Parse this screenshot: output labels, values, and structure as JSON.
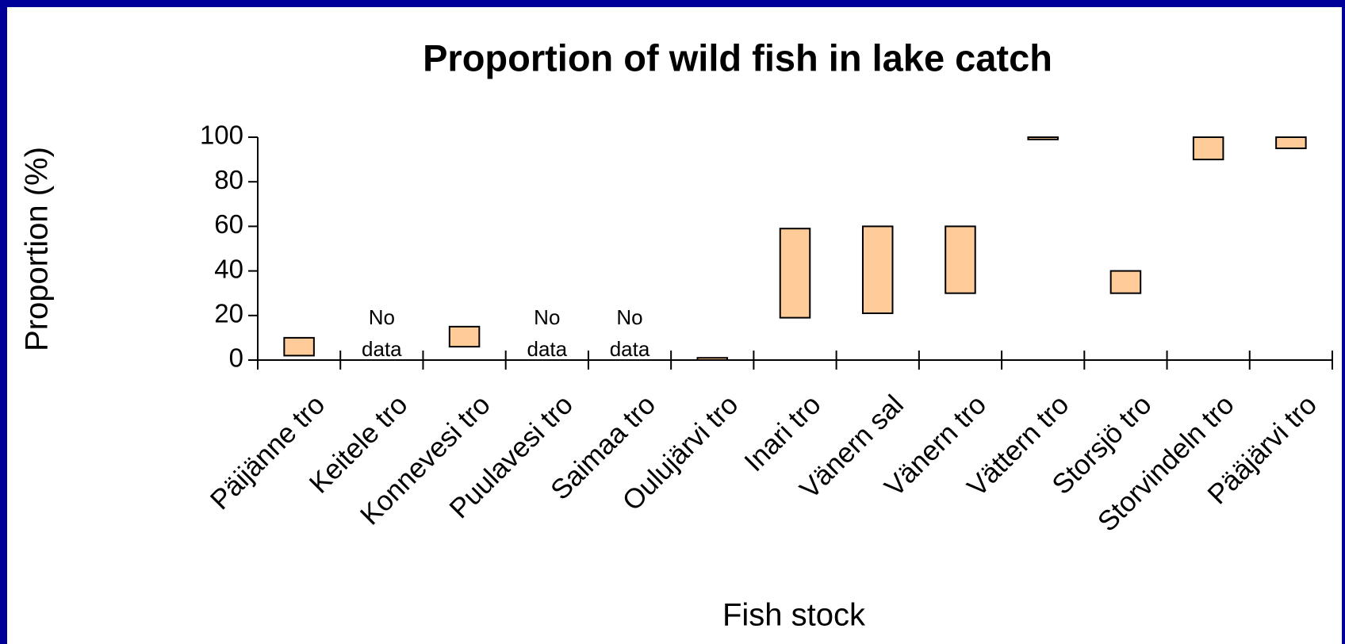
{
  "chart_data": {
    "type": "floating_bar",
    "title": "Proportion of wild fish in lake catch",
    "xlabel": "Fish stock",
    "ylabel": "Proportion (%)",
    "categories": [
      "Päijänne tro",
      "Keitele tro",
      "Konnevesi tro",
      "Puulavesi tro",
      "Saimaa tro",
      "Oulujärvi tro",
      "Inari tro",
      "Vänern sal",
      "Vänern tro",
      "Vättern tro",
      "Storsjö tro",
      "Storvindeln tro",
      "Pääjärvi tro"
    ],
    "low": [
      2,
      null,
      6,
      null,
      null,
      0,
      19,
      21,
      30,
      99,
      30,
      90,
      95
    ],
    "high": [
      10,
      null,
      15,
      null,
      null,
      1,
      59,
      60,
      60,
      100,
      40,
      100,
      100
    ],
    "annotations": [
      null,
      "No data",
      null,
      "No data",
      "No data",
      null,
      null,
      null,
      null,
      null,
      null,
      null,
      null
    ],
    "color": "#ffcc99",
    "ylim": [
      0,
      100
    ],
    "yticks": [
      0,
      20,
      40,
      60,
      80,
      100
    ]
  }
}
